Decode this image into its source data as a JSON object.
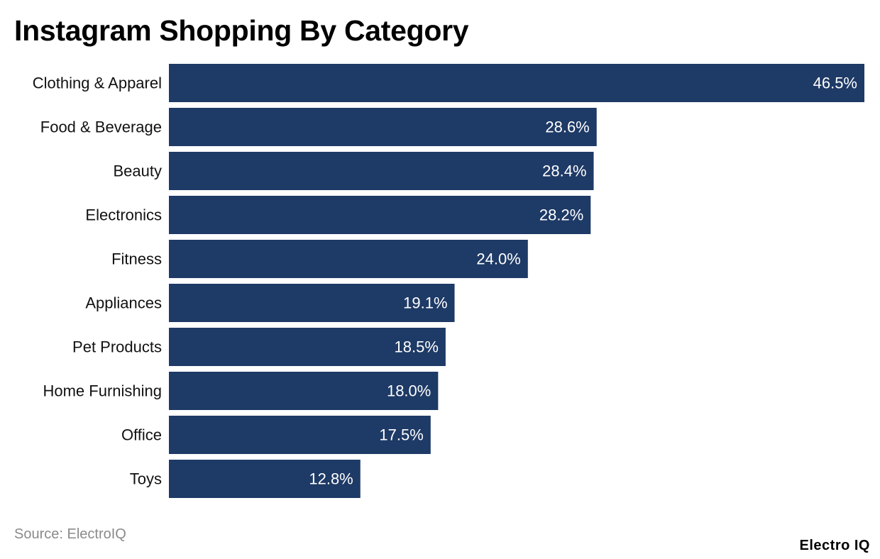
{
  "chart_data": {
    "type": "bar",
    "orientation": "horizontal",
    "title": "Instagram Shopping By Category",
    "categories": [
      "Clothing & Apparel",
      "Food & Beverage",
      "Beauty",
      "Electronics",
      "Fitness",
      "Appliances",
      "Pet Products",
      "Home Furnishing",
      "Office",
      "Toys"
    ],
    "values": [
      46.5,
      28.6,
      28.4,
      28.2,
      24.0,
      19.1,
      18.5,
      18.0,
      17.5,
      12.8
    ],
    "value_labels": [
      "46.5%",
      "28.6%",
      "28.4%",
      "28.2%",
      "24.0%",
      "19.1%",
      "18.5%",
      "18.0%",
      "17.5%",
      "12.8%"
    ],
    "xlim": [
      0,
      46.5
    ],
    "grid": false,
    "legend": "none",
    "bar_color": "#1e3a66",
    "label_color": "#ffffff"
  },
  "footer": {
    "source": "Source: ElectroIQ",
    "brand": "Electro IQ"
  }
}
